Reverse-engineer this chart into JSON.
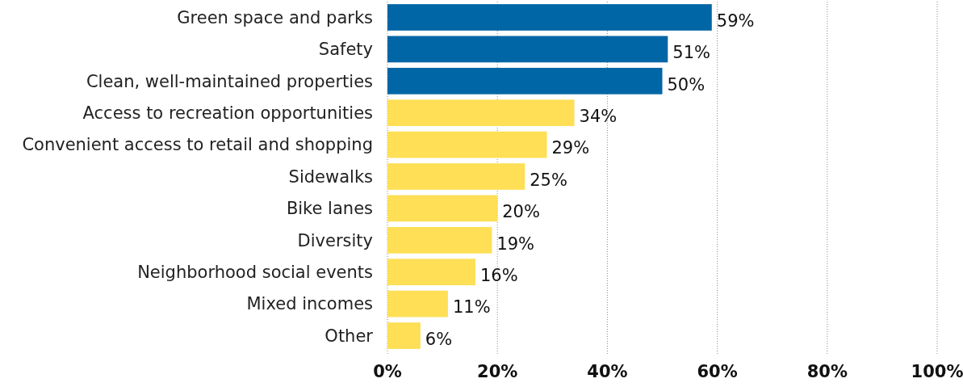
{
  "chart_data": {
    "type": "bar",
    "orientation": "horizontal",
    "categories": [
      "Green space and parks",
      "Safety",
      "Clean, well-maintained properties",
      "Access to recreation opportunities",
      "Convenient access to retail and shopping",
      "Sidewalks",
      "Bike lanes",
      "Diversity",
      "Neighborhood social events",
      "Mixed incomes",
      "Other"
    ],
    "values": [
      59,
      51,
      50,
      34,
      29,
      25,
      20,
      19,
      16,
      11,
      6
    ],
    "colors": [
      "#0066a6",
      "#0066a6",
      "#0066a6",
      "#fedf55",
      "#fedf55",
      "#fedf55",
      "#fedf55",
      "#fedf55",
      "#fedf55",
      "#fedf55",
      "#fedf55"
    ],
    "value_labels": [
      "59%",
      "51%",
      "50%",
      "34%",
      "29%",
      "25%",
      "20%",
      "19%",
      "16%",
      "11%",
      "6%"
    ],
    "xlim": [
      0,
      100
    ],
    "xticks": [
      {
        "value": 0,
        "label": "0%"
      },
      {
        "value": 20,
        "label": "20%"
      },
      {
        "value": 40,
        "label": "40%"
      },
      {
        "value": 60,
        "label": "60%"
      },
      {
        "value": 80,
        "label": "80%"
      },
      {
        "value": 100,
        "label": "100%"
      }
    ],
    "grid": "x"
  }
}
